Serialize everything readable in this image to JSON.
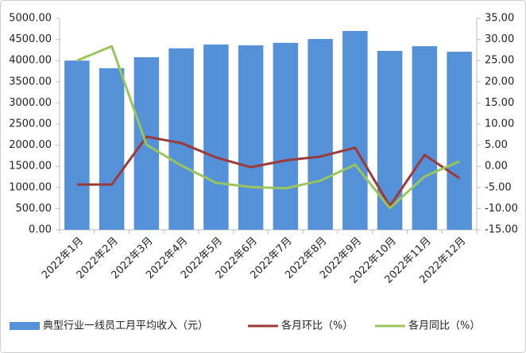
{
  "chart_data": {
    "type": "bar_line",
    "categories": [
      "2022年1月",
      "2022年2月",
      "2022年3月",
      "2022年4月",
      "2022年5月",
      "2022年6月",
      "2022年7月",
      "2022年8月",
      "2022年9月",
      "2022年10月",
      "2022年11月",
      "2022年12月"
    ],
    "series": [
      {
        "name": "典型行业一线员工月平均收入（元）",
        "type": "bar",
        "color": "#5591d8",
        "values": [
          4000,
          3820,
          4080,
          4290,
          4380,
          4360,
          4420,
          4510,
          4700,
          4230,
          4340,
          4210
        ]
      },
      {
        "name": "各月环比（%）",
        "type": "line",
        "axis": "y2",
        "color": "#9b3a38",
        "values": [
          -4.3,
          -4.3,
          7.0,
          5.5,
          2.1,
          -0.2,
          1.4,
          2.3,
          4.4,
          -9.4,
          2.7,
          -2.8
        ]
      },
      {
        "name": "各月同比（%）",
        "type": "line",
        "axis": "y2",
        "color": "#9bc45a",
        "values": [
          25.0,
          28.4,
          5.1,
          0.2,
          -3.9,
          -4.9,
          -5.2,
          -3.4,
          0.4,
          -9.9,
          -2.4,
          1.2
        ]
      }
    ],
    "ylim": [
      0,
      5000
    ],
    "yticks": [
      {
        "value": 0,
        "label": "0.00"
      },
      {
        "value": 500,
        "label": "500.00"
      },
      {
        "value": 1000,
        "label": "1000.00"
      },
      {
        "value": 1500,
        "label": "1500.00"
      },
      {
        "value": 2000,
        "label": "2000.00"
      },
      {
        "value": 2500,
        "label": "2500.00"
      },
      {
        "value": 3000,
        "label": "3000.00"
      },
      {
        "value": 3500,
        "label": "3500.00"
      },
      {
        "value": 4000,
        "label": "4000.00"
      },
      {
        "value": 4500,
        "label": "4500.00"
      },
      {
        "value": 5000,
        "label": "5000.00"
      }
    ],
    "y2lim": [
      -15,
      35
    ],
    "y2ticks": [
      {
        "value": -15,
        "label": "-15.00"
      },
      {
        "value": -10,
        "label": "-10.00"
      },
      {
        "value": -5,
        "label": "-5.00"
      },
      {
        "value": 0,
        "label": "0.00"
      },
      {
        "value": 5,
        "label": "5.00"
      },
      {
        "value": 10,
        "label": "10.00"
      },
      {
        "value": 15,
        "label": "15.00"
      },
      {
        "value": 20,
        "label": "20.00"
      },
      {
        "value": 25,
        "label": "25.00"
      },
      {
        "value": 30,
        "label": "30.00"
      },
      {
        "value": 35,
        "label": "35.00"
      }
    ],
    "grid": false,
    "legend": "bottom"
  }
}
